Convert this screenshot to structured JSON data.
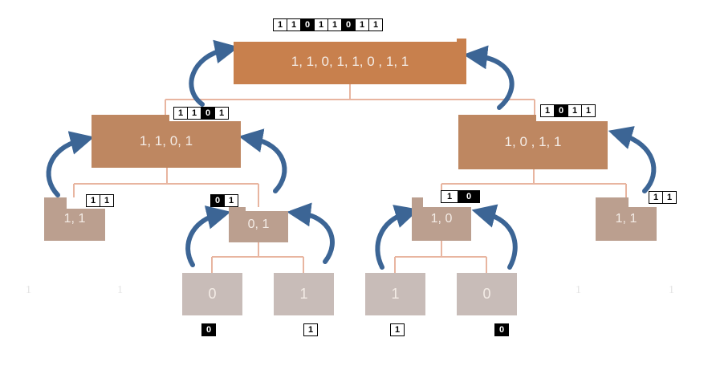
{
  "colors": {
    "level0": "#c8804d",
    "level1": "#be8761",
    "level2": "#bb9f8f",
    "level3": "#c8bcb8",
    "connector": "#e8b5a0",
    "arrow": "#3c6595",
    "bit_dark": "#000000"
  },
  "nodes": {
    "root": {
      "label": "1, 1, 0, 1, 1, 0 , 1, 1",
      "bits": [
        "1",
        "1",
        "0",
        "1",
        "1",
        "0",
        "1",
        "1"
      ]
    },
    "left": {
      "label": "1, 1, 0, 1",
      "bits": [
        "1",
        "1",
        "0",
        "1"
      ]
    },
    "right": {
      "label": "1, 0 , 1, 1",
      "bits": [
        "1",
        "0",
        "1",
        "1"
      ]
    },
    "left_left": {
      "label": "1, 1",
      "bits": [
        "1",
        "1"
      ]
    },
    "left_right": {
      "label": "0, 1",
      "bits": [
        "0",
        "1"
      ]
    },
    "right_left": {
      "label": "1, 0",
      "bits": [
        "1",
        "0"
      ]
    },
    "right_right": {
      "label": "1, 1",
      "bits": [
        "1",
        "1"
      ]
    },
    "leaf_0": {
      "label": "0",
      "bits": [
        "0"
      ]
    },
    "leaf_1": {
      "label": "1",
      "bits": [
        "1"
      ]
    },
    "leaf_2": {
      "label": "1",
      "bits": [
        "1"
      ]
    },
    "leaf_3": {
      "label": "0",
      "bits": [
        "0"
      ]
    }
  },
  "faded_labels": [
    "1",
    "1",
    "1",
    "1"
  ]
}
